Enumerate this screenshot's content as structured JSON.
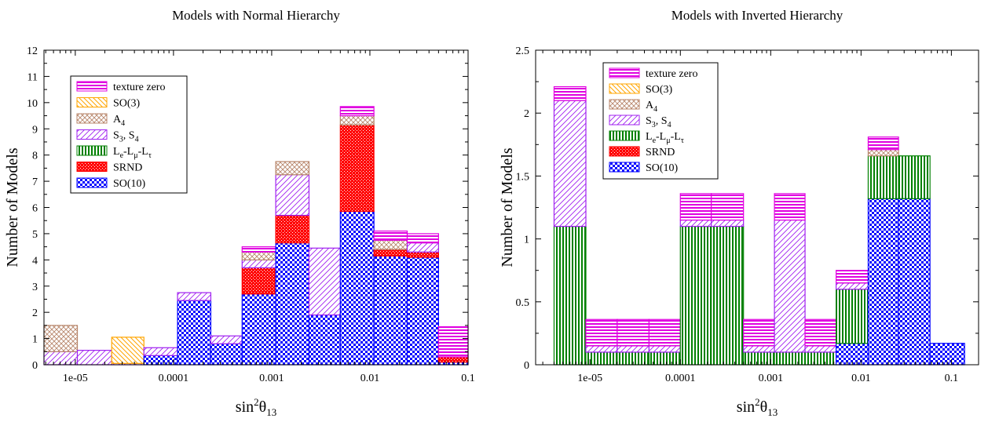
{
  "chart_data": [
    {
      "type": "bar",
      "stacked": true,
      "title": "Models with Normal Hierarchy",
      "xlabel_base": "sin",
      "xlabel_sup": "2",
      "xlabel_theta": "θ",
      "xlabel_sub": "13",
      "ylabel": "Number of Models",
      "x_scale": "log",
      "xlim": [
        4.8e-06,
        0.1
      ],
      "ylim": [
        0,
        12
      ],
      "yticks": [
        0,
        1,
        2,
        3,
        4,
        5,
        6,
        7,
        8,
        9,
        10,
        11,
        12
      ],
      "xticks": [
        {
          "value": 1e-05,
          "label": "1e-05"
        },
        {
          "value": 0.0001,
          "label": "0.0001"
        },
        {
          "value": 0.001,
          "label": "0.001"
        },
        {
          "value": 0.01,
          "label": "0.01"
        },
        {
          "value": 0.1,
          "label": "0.1"
        }
      ],
      "grid": false,
      "legend": "top-left",
      "bins": [
        {
          "x0": 4.8e-06,
          "x1": 1.05e-05,
          "segments": {
            "SO(10)": 0.0,
            "SRND": 0.0,
            "Le-Lmu-Ltau": 0.0,
            "S3,S4": 0.5,
            "A4": 1.0,
            "SO(3)": 0.0,
            "texture zero": 0.0
          }
        },
        {
          "x0": 1.05e-05,
          "x1": 2.35e-05,
          "segments": {
            "SO(10)": 0.0,
            "SRND": 0.0,
            "Le-Lmu-Ltau": 0.0,
            "S3,S4": 0.55,
            "A4": 0.0,
            "SO(3)": 0.0,
            "texture zero": 0.0
          }
        },
        {
          "x0": 2.35e-05,
          "x1": 5e-05,
          "segments": {
            "SO(10)": 0.0,
            "SRND": 0.0,
            "Le-Lmu-Ltau": 0.0,
            "S3,S4": 0.05,
            "A4": 0.0,
            "SO(3)": 1.0,
            "texture zero": 0.0
          }
        },
        {
          "x0": 5e-05,
          "x1": 0.00011,
          "segments": {
            "SO(10)": 0.35,
            "SRND": 0.0,
            "Le-Lmu-Ltau": 0.0,
            "S3,S4": 0.3,
            "A4": 0.0,
            "SO(3)": 0.0,
            "texture zero": 0.0
          }
        },
        {
          "x0": 0.00011,
          "x1": 0.00024,
          "segments": {
            "SO(10)": 2.45,
            "SRND": 0.0,
            "Le-Lmu-Ltau": 0.0,
            "S3,S4": 0.3,
            "A4": 0.0,
            "SO(3)": 0.0,
            "texture zero": 0.0
          }
        },
        {
          "x0": 0.00024,
          "x1": 0.0005,
          "segments": {
            "SO(10)": 0.8,
            "SRND": 0.0,
            "Le-Lmu-Ltau": 0.0,
            "S3,S4": 0.3,
            "A4": 0.0,
            "SO(3)": 0.0,
            "texture zero": 0.0
          }
        },
        {
          "x0": 0.0005,
          "x1": 0.0011,
          "segments": {
            "SO(10)": 2.7,
            "SRND": 1.0,
            "Le-Lmu-Ltau": 0.0,
            "S3,S4": 0.3,
            "A4": 0.3,
            "SO(3)": 0.0,
            "texture zero": 0.2
          }
        },
        {
          "x0": 0.0011,
          "x1": 0.0024,
          "segments": {
            "SO(10)": 4.65,
            "SRND": 1.05,
            "Le-Lmu-Ltau": 0.0,
            "S3,S4": 1.55,
            "A4": 0.5,
            "SO(3)": 0.0,
            "texture zero": 0.0
          }
        },
        {
          "x0": 0.0024,
          "x1": 0.005,
          "segments": {
            "SO(10)": 1.9,
            "SRND": 0.0,
            "Le-Lmu-Ltau": 0.0,
            "S3,S4": 2.55,
            "A4": 0.0,
            "SO(3)": 0.0,
            "texture zero": 0.0
          }
        },
        {
          "x0": 0.005,
          "x1": 0.011,
          "segments": {
            "SO(10)": 5.85,
            "SRND": 3.3,
            "Le-Lmu-Ltau": 0.0,
            "S3,S4": 0.0,
            "A4": 0.35,
            "SO(3)": 0.0,
            "texture zero": 0.35
          }
        },
        {
          "x0": 0.011,
          "x1": 0.024,
          "segments": {
            "SO(10)": 4.15,
            "SRND": 0.25,
            "Le-Lmu-Ltau": 0.0,
            "S3,S4": 0.0,
            "A4": 0.35,
            "SO(3)": 0.0,
            "texture zero": 0.35
          }
        },
        {
          "x0": 0.024,
          "x1": 0.05,
          "segments": {
            "SO(10)": 4.1,
            "SRND": 0.2,
            "Le-Lmu-Ltau": 0.0,
            "S3,S4": 0.35,
            "A4": 0.0,
            "SO(3)": 0.0,
            "texture zero": 0.35
          }
        },
        {
          "x0": 0.05,
          "x1": 0.1,
          "segments": {
            "SO(10)": 0.1,
            "SRND": 0.2,
            "Le-Lmu-Ltau": 0.0,
            "S3,S4": 0.0,
            "A4": 0.0,
            "SO(3)": 0.0,
            "texture zero": 1.15
          }
        }
      ]
    },
    {
      "type": "bar",
      "stacked": true,
      "title": "Models with Inverted Hierarchy",
      "xlabel_base": "sin",
      "xlabel_sup": "2",
      "xlabel_theta": "θ",
      "xlabel_sub": "13",
      "ylabel": "Number of Models",
      "x_scale": "log",
      "xlim": [
        2.5e-06,
        0.2
      ],
      "ylim": [
        0,
        2.5
      ],
      "yticks": [
        0,
        0.5,
        1,
        1.5,
        2,
        2.5
      ],
      "xticks": [
        {
          "value": 1e-05,
          "label": "1e-05"
        },
        {
          "value": 0.0001,
          "label": "0.0001"
        },
        {
          "value": 0.001,
          "label": "0.001"
        },
        {
          "value": 0.01,
          "label": "0.01"
        },
        {
          "value": 0.1,
          "label": "0.1"
        }
      ],
      "grid": false,
      "legend": "top-left",
      "bins": [
        {
          "x0": 4e-06,
          "x1": 9e-06,
          "segments": {
            "SO(10)": 0.0,
            "SRND": 0.0,
            "Le-Lmu-Ltau": 1.1,
            "S3,S4": 1.0,
            "A4": 0.0,
            "SO(3)": 0.0,
            "texture zero": 0.11
          }
        },
        {
          "x0": 9e-06,
          "x1": 2e-05,
          "segments": {
            "SO(10)": 0.0,
            "SRND": 0.0,
            "Le-Lmu-Ltau": 0.1,
            "S3,S4": 0.05,
            "A4": 0.0,
            "SO(3)": 0.0,
            "texture zero": 0.21
          }
        },
        {
          "x0": 2e-05,
          "x1": 4.5e-05,
          "segments": {
            "SO(10)": 0.0,
            "SRND": 0.0,
            "Le-Lmu-Ltau": 0.1,
            "S3,S4": 0.05,
            "A4": 0.0,
            "SO(3)": 0.0,
            "texture zero": 0.21
          }
        },
        {
          "x0": 4.5e-05,
          "x1": 0.0001,
          "segments": {
            "SO(10)": 0.0,
            "SRND": 0.0,
            "Le-Lmu-Ltau": 0.1,
            "S3,S4": 0.05,
            "A4": 0.0,
            "SO(3)": 0.0,
            "texture zero": 0.21
          }
        },
        {
          "x0": 0.0001,
          "x1": 0.00022,
          "segments": {
            "SO(10)": 0.0,
            "SRND": 0.0,
            "Le-Lmu-Ltau": 1.1,
            "S3,S4": 0.05,
            "A4": 0.0,
            "SO(3)": 0.0,
            "texture zero": 0.21
          }
        },
        {
          "x0": 0.00022,
          "x1": 0.0005,
          "segments": {
            "SO(10)": 0.0,
            "SRND": 0.0,
            "Le-Lmu-Ltau": 1.1,
            "S3,S4": 0.05,
            "A4": 0.0,
            "SO(3)": 0.0,
            "texture zero": 0.21
          }
        },
        {
          "x0": 0.0005,
          "x1": 0.0011,
          "segments": {
            "SO(10)": 0.0,
            "SRND": 0.0,
            "Le-Lmu-Ltau": 0.1,
            "S3,S4": 0.05,
            "A4": 0.0,
            "SO(3)": 0.0,
            "texture zero": 0.21
          }
        },
        {
          "x0": 0.0011,
          "x1": 0.0024,
          "segments": {
            "SO(10)": 0.0,
            "SRND": 0.0,
            "Le-Lmu-Ltau": 0.1,
            "S3,S4": 1.05,
            "A4": 0.0,
            "SO(3)": 0.0,
            "texture zero": 0.21
          }
        },
        {
          "x0": 0.0024,
          "x1": 0.0053,
          "segments": {
            "SO(10)": 0.0,
            "SRND": 0.0,
            "Le-Lmu-Ltau": 0.1,
            "S3,S4": 0.05,
            "A4": 0.0,
            "SO(3)": 0.0,
            "texture zero": 0.21
          }
        },
        {
          "x0": 0.0053,
          "x1": 0.012,
          "segments": {
            "SO(10)": 0.17,
            "SRND": 0.0,
            "Le-Lmu-Ltau": 0.43,
            "S3,S4": 0.05,
            "A4": 0.0,
            "SO(3)": 0.0,
            "texture zero": 0.1
          }
        },
        {
          "x0": 0.012,
          "x1": 0.026,
          "segments": {
            "SO(10)": 1.32,
            "SRND": 0.0,
            "Le-Lmu-Ltau": 0.34,
            "S3,S4": 0.0,
            "A4": 0.05,
            "SO(3)": 0.0,
            "texture zero": 0.1
          }
        },
        {
          "x0": 0.026,
          "x1": 0.058,
          "segments": {
            "SO(10)": 1.32,
            "SRND": 0.0,
            "Le-Lmu-Ltau": 0.34,
            "S3,S4": 0.0,
            "A4": 0.0,
            "SO(3)": 0.0,
            "texture zero": 0.0
          }
        },
        {
          "x0": 0.058,
          "x1": 0.14,
          "segments": {
            "SO(10)": 0.17,
            "SRND": 0.0,
            "Le-Lmu-Ltau": 0.0,
            "S3,S4": 0.0,
            "A4": 0.0,
            "SO(3)": 0.0,
            "texture zero": 0.0
          }
        }
      ]
    }
  ],
  "legend_entries": [
    {
      "key": "texture zero",
      "label": "texture zero",
      "base": "",
      "sub": "",
      "extra": "",
      "pattern": "hstripe",
      "color": "#e000e0"
    },
    {
      "key": "SO(3)",
      "label": "SO(3)",
      "base": "",
      "sub": "",
      "extra": "",
      "pattern": "diag-left",
      "color": "#ffa500"
    },
    {
      "key": "A4",
      "label": "",
      "base": "A",
      "sub": "4",
      "extra": "",
      "pattern": "cross",
      "color": "#b8866b"
    },
    {
      "key": "S3,S4",
      "label": "",
      "base": "S",
      "sub": "3",
      "extra": ", S",
      "extra_sub": "4",
      "pattern": "diag-right",
      "color": "#a020f0"
    },
    {
      "key": "Le-Lmu-Ltau",
      "label": "",
      "base": "L",
      "sub": "e",
      "extra": "-L",
      "extra_sub": "μ",
      "extra2": "-L",
      "extra2_sub": "τ",
      "pattern": "vstripe",
      "color": "#008000"
    },
    {
      "key": "SRND",
      "label": "SRND",
      "base": "",
      "sub": "",
      "extra": "",
      "pattern": "dots",
      "color": "#ff0000"
    },
    {
      "key": "SO(10)",
      "label": "SO(10)",
      "base": "",
      "sub": "",
      "extra": "",
      "pattern": "checker",
      "color": "#0000ff"
    }
  ],
  "stack_order": [
    "SO(10)",
    "SRND",
    "Le-Lmu-Ltau",
    "S3,S4",
    "A4",
    "SO(3)",
    "texture zero"
  ]
}
